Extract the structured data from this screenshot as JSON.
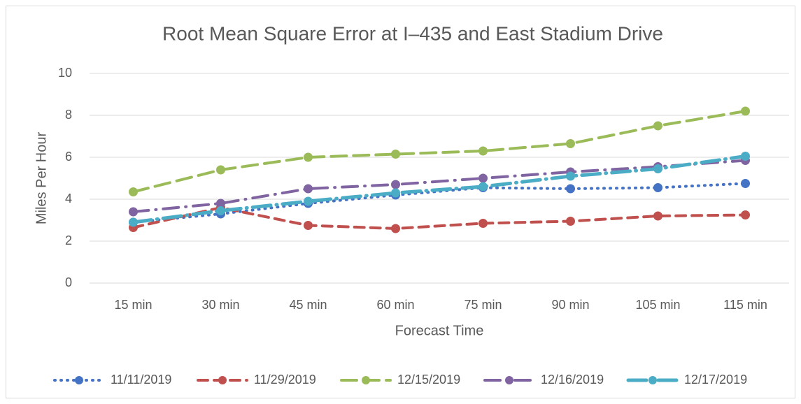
{
  "chart_data": {
    "type": "line",
    "title": "Root Mean Square Error at I–435 and East Stadium Drive",
    "x_label": "Forecast Time",
    "y_label": "Miles Per Hour",
    "categories": [
      "15 min",
      "30 min",
      "45 min",
      "60 min",
      "75 min",
      "90 min",
      "105 min",
      "115 min"
    ],
    "series": [
      {
        "name": "11/11/2019",
        "color": "#4472c4",
        "values": [
          2.9,
          3.3,
          3.8,
          4.2,
          4.55,
          4.5,
          4.55,
          4.75
        ]
      },
      {
        "name": "11/29/2019",
        "color": "#c0504d",
        "values": [
          2.65,
          3.6,
          2.75,
          2.6,
          2.85,
          2.95,
          3.2,
          3.25
        ]
      },
      {
        "name": "12/15/2019",
        "color": "#9bbb59",
        "values": [
          4.35,
          5.4,
          6.0,
          6.15,
          6.3,
          6.65,
          7.5,
          8.2
        ]
      },
      {
        "name": "12/16/2019",
        "color": "#8064a2",
        "values": [
          3.4,
          3.8,
          4.5,
          4.7,
          5.0,
          5.3,
          5.55,
          5.85
        ]
      },
      {
        "name": "12/17/2019",
        "color": "#4bacc6",
        "values": [
          2.9,
          3.45,
          3.9,
          4.3,
          4.6,
          5.1,
          5.45,
          6.05
        ]
      }
    ],
    "ylim": [
      0,
      10
    ],
    "yticks": [
      0,
      2,
      4,
      6,
      8,
      10
    ],
    "grid": true,
    "legend": "bottom"
  }
}
